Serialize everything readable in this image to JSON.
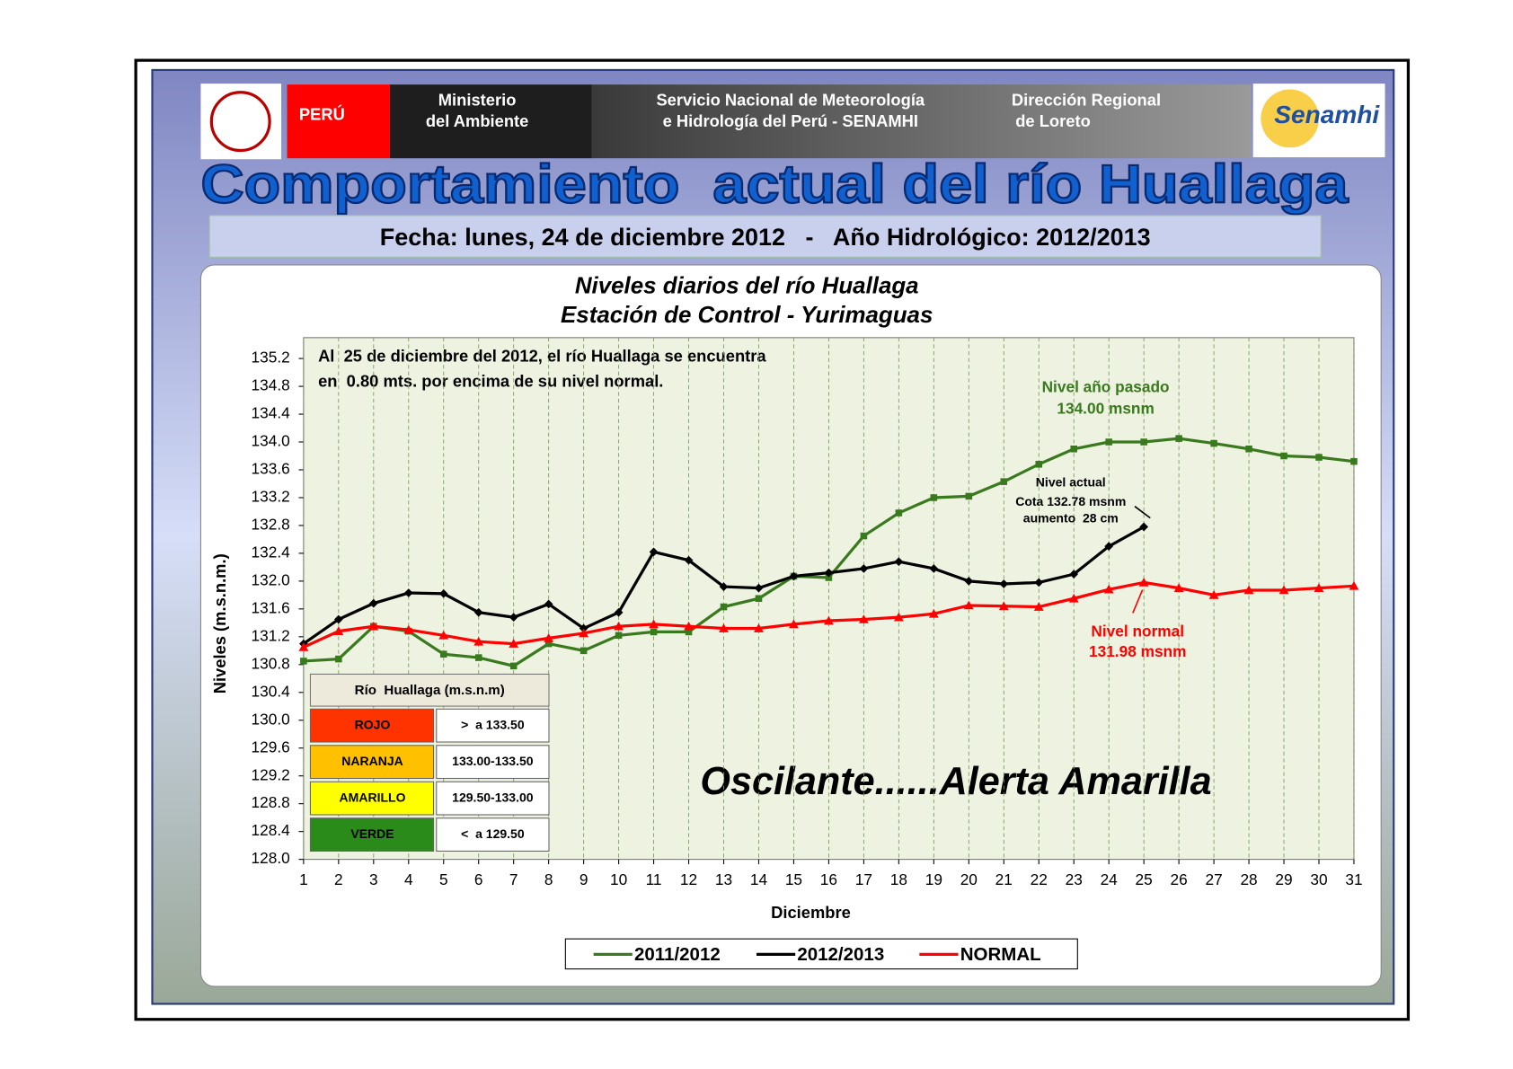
{
  "header": {
    "country": "PERÚ",
    "ministry": [
      "Ministerio",
      "del Ambiente"
    ],
    "service": [
      "Servicio Nacional de Meteorología",
      "e Hidrología del Perú - SENAMHI"
    ],
    "region": [
      "Dirección Regional",
      "de Loreto"
    ],
    "logo": "Senamhi"
  },
  "poster_title": "Comportamiento  actual del río Huallaga",
  "date_line": "Fecha: lunes, 24 de diciembre 2012   -   Año Hidrológico: 2012/2013",
  "chart_data": {
    "type": "line",
    "title": "Niveles diarios del río Huallaga",
    "subtitle": "Estación de Control - Yurimaguas",
    "x_label": "Diciembre",
    "y_label": "Niveles (m.s.n.m.)",
    "x": [
      1,
      2,
      3,
      4,
      5,
      6,
      7,
      8,
      9,
      10,
      11,
      12,
      13,
      14,
      15,
      16,
      17,
      18,
      19,
      20,
      21,
      22,
      23,
      24,
      25,
      26,
      27,
      28,
      29,
      30,
      31
    ],
    "xlim": [
      1,
      31
    ],
    "xticks": [
      1,
      2,
      3,
      4,
      5,
      6,
      7,
      8,
      9,
      10,
      11,
      12,
      13,
      14,
      15,
      16,
      17,
      18,
      19,
      20,
      21,
      22,
      23,
      24,
      25,
      26,
      27,
      28,
      29,
      30,
      31
    ],
    "ylim": [
      128,
      135.5
    ],
    "yticks": [
      {
        "value": 128,
        "label": "128.0"
      },
      128.4,
      128.8,
      129.2,
      129.6,
      {
        "value": 130,
        "label": "130.0"
      },
      130.4,
      130.8,
      131.2,
      131.6,
      {
        "value": 132,
        "label": "132.0"
      },
      132.4,
      132.8,
      133.2,
      133.6,
      {
        "value": 134,
        "label": "134.0"
      },
      134.4,
      134.8,
      135.2
    ],
    "grid": true,
    "series": [
      {
        "name": "2011/2012",
        "color": "#3a7a1e",
        "marker": "square",
        "values": [
          130.85,
          130.88,
          131.35,
          131.28,
          130.95,
          130.9,
          130.78,
          131.1,
          131.0,
          131.22,
          131.27,
          131.27,
          131.63,
          131.75,
          132.07,
          132.05,
          132.65,
          132.98,
          133.2,
          133.22,
          133.43,
          133.68,
          133.9,
          134.0,
          134.0,
          134.05,
          133.98,
          133.9,
          133.8,
          133.78,
          133.72
        ]
      },
      {
        "name": "2012/2013",
        "color": "#000000",
        "marker": "diamond",
        "values": [
          131.1,
          131.45,
          131.68,
          131.83,
          131.82,
          131.55,
          131.48,
          131.67,
          131.32,
          131.55,
          132.42,
          132.3,
          131.92,
          131.9,
          132.07,
          132.12,
          132.18,
          132.28,
          132.18,
          132.0,
          131.96,
          131.98,
          132.1,
          132.5,
          132.78,
          null,
          null,
          null,
          null,
          null,
          null
        ]
      },
      {
        "name": "NORMAL",
        "color": "#ff0000",
        "marker": "triangle",
        "values": [
          131.05,
          131.28,
          131.35,
          131.3,
          131.22,
          131.13,
          131.1,
          131.18,
          131.25,
          131.35,
          131.38,
          131.35,
          131.32,
          131.32,
          131.38,
          131.43,
          131.45,
          131.48,
          131.53,
          131.65,
          131.64,
          131.63,
          131.75,
          131.88,
          131.98,
          131.9,
          131.8,
          131.87,
          131.87,
          131.9,
          131.93
        ]
      }
    ],
    "note": [
      "Al  25 de diciembre del 2012, el río Huallaga se encuentra",
      "en  0.80 mts. por encima de su nivel normal."
    ],
    "annotations": [
      {
        "lines": [
          "Nivel año pasado",
          "134.00 msnm"
        ],
        "color": "#3a7a1e"
      },
      {
        "lines": [
          "Nivel actual",
          "Cota 132.78 msnm",
          "aumento  28 cm"
        ],
        "color": "#000000"
      },
      {
        "lines": [
          "Nivel normal",
          "131.98 msnm"
        ],
        "color": "#ff0000"
      }
    ],
    "status": "Oscilante......Alerta Amarilla"
  },
  "alert_table": {
    "title": "Río  Huallaga (m.s.n.m)",
    "rows": [
      {
        "level": "ROJO",
        "range": ">  a 133.50",
        "color": "#ff3300"
      },
      {
        "level": "NARANJA",
        "range": "133.00-133.50",
        "color": "#ffc000"
      },
      {
        "level": "AMARILLO",
        "range": "129.50-133.00",
        "color": "#ffff00"
      },
      {
        "level": "VERDE",
        "range": "<  a 129.50",
        "color": "#2a8a1a"
      }
    ]
  }
}
